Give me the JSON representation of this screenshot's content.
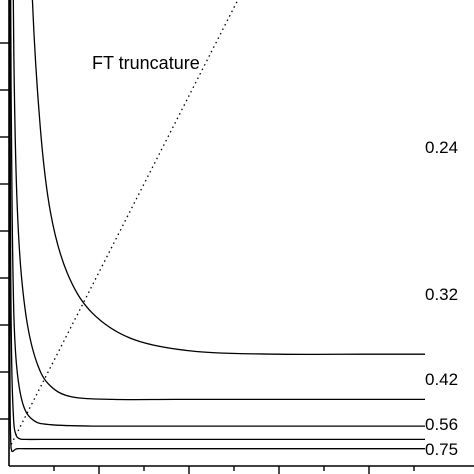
{
  "chart_data": {
    "type": "line",
    "title": "",
    "xlabel": "",
    "ylabel": "",
    "grid": false,
    "legend": "none",
    "annotations": [
      {
        "text": "FT truncature"
      }
    ],
    "series": [
      {
        "name": "0.24",
        "x": [
          0.03,
          0.04,
          0.055,
          0.075,
          0.1,
          0.14,
          0.2,
          0.3,
          0.45,
          0.65,
          0.85,
          1.0
        ],
        "y": [
          8.5,
          5.5,
          3.6,
          2.55,
          1.9,
          1.45,
          1.15,
          0.95,
          0.86,
          0.84,
          0.84,
          0.84
        ]
      },
      {
        "name": "0.32",
        "x": [
          0.005,
          0.008,
          0.012,
          0.018,
          0.028,
          0.045,
          0.07,
          0.1,
          0.15,
          0.25,
          0.4,
          0.6,
          1.0
        ],
        "y": [
          6.5,
          4.3,
          3.0,
          2.1,
          1.5,
          1.05,
          0.75,
          0.6,
          0.52,
          0.5,
          0.5,
          0.5,
          0.5
        ]
      },
      {
        "name": "0.42",
        "x": [
          0.003,
          0.005,
          0.008,
          0.012,
          0.02,
          0.035,
          0.06,
          0.1,
          0.2,
          0.4,
          0.7,
          1.0
        ],
        "y": [
          4.5,
          2.8,
          1.8,
          1.1,
          0.7,
          0.45,
          0.34,
          0.31,
          0.3,
          0.3,
          0.3,
          0.3
        ]
      },
      {
        "name": "0.56",
        "x": [
          0.002,
          0.004,
          0.007,
          0.011,
          0.016,
          0.025,
          0.04,
          0.08,
          0.2,
          0.5,
          1.0
        ],
        "y": [
          3.5,
          1.5,
          0.7,
          0.35,
          0.24,
          0.205,
          0.2,
          0.2,
          0.2,
          0.2,
          0.2
        ]
      },
      {
        "name": "0.75",
        "x": [
          0.001,
          0.0025,
          0.004,
          0.006,
          0.009,
          0.013,
          0.02,
          0.04,
          0.1,
          0.3,
          0.6,
          1.0
        ],
        "y": [
          2.5,
          0.6,
          0.2,
          0.12,
          0.11,
          0.12,
          0.13,
          0.13,
          0.13,
          0.13,
          0.13,
          0.13
        ]
      },
      {
        "name": "FT truncature",
        "x": [
          0.0,
          0.55
        ],
        "y": [
          0.13,
          3.5
        ]
      }
    ]
  }
}
